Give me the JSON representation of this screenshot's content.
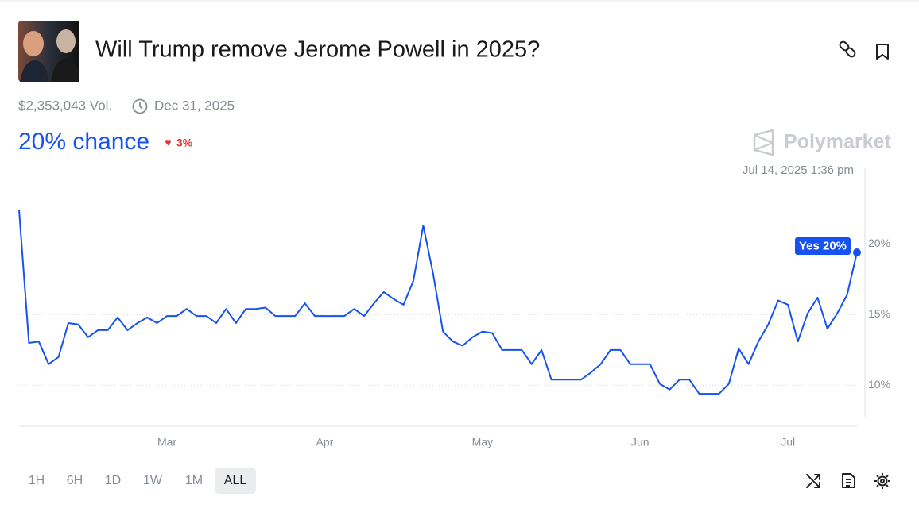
{
  "header": {
    "title": "Will Trump remove Jerome Powell in 2025?",
    "volume": "$2,353,043 Vol.",
    "end_date": "Dec 31, 2025"
  },
  "chance": {
    "label": "20% chance",
    "change": "3%"
  },
  "brand": "Polymarket",
  "chart_data": {
    "type": "line",
    "hover_date": "Jul 14, 2025 1:36 pm",
    "annotation": "Yes 20%",
    "color": "#1652f0",
    "categories": [
      null,
      null,
      null,
      null,
      null,
      null,
      null,
      null,
      null,
      null,
      null,
      null,
      null,
      null,
      null,
      "Mar",
      null,
      null,
      null,
      null,
      null,
      null,
      null,
      null,
      null,
      null,
      null,
      null,
      null,
      null,
      null,
      "Apr",
      null,
      null,
      null,
      null,
      null,
      null,
      null,
      null,
      null,
      null,
      null,
      null,
      null,
      null,
      null,
      "May",
      null,
      null,
      null,
      null,
      null,
      null,
      null,
      null,
      null,
      null,
      null,
      null,
      null,
      null,
      null,
      "Jun",
      null,
      null,
      null,
      null,
      null,
      null,
      null,
      null,
      null,
      null,
      null,
      null,
      null,
      null,
      "Jul",
      null,
      null,
      null,
      null,
      null,
      null,
      null
    ],
    "values": [
      22.4,
      13.0,
      13.1,
      11.5,
      12.0,
      14.4,
      14.3,
      13.4,
      13.9,
      13.9,
      14.8,
      13.9,
      14.4,
      14.8,
      14.4,
      14.9,
      14.9,
      15.4,
      14.9,
      14.9,
      14.4,
      15.4,
      14.4,
      15.4,
      15.4,
      15.5,
      14.9,
      14.9,
      14.9,
      15.8,
      14.9,
      14.9,
      14.9,
      14.9,
      15.4,
      14.9,
      15.8,
      16.6,
      16.1,
      15.7,
      17.4,
      21.3,
      17.9,
      13.8,
      13.1,
      12.8,
      13.4,
      13.8,
      13.7,
      12.5,
      12.5,
      12.5,
      11.5,
      12.5,
      10.4,
      10.4,
      10.4,
      10.4,
      10.9,
      11.5,
      12.5,
      12.5,
      11.5,
      11.5,
      11.5,
      10.1,
      9.7,
      10.4,
      10.4,
      9.4,
      9.4,
      9.4,
      10.1,
      12.6,
      11.5,
      13.1,
      14.3,
      16.0,
      15.7,
      13.1,
      15.1,
      16.2,
      14.0,
      15.1,
      16.4,
      19.4
    ],
    "ylim": [
      7.1,
      25.3
    ],
    "yticks": [
      {
        "value": 10,
        "label": "10%"
      },
      {
        "value": 15,
        "label": "15%"
      },
      {
        "value": 20,
        "label": "20%"
      }
    ],
    "grid": true
  },
  "time_ranges": [
    {
      "label": "1H"
    },
    {
      "label": "6H"
    },
    {
      "label": "1D"
    },
    {
      "label": "1W"
    },
    {
      "label": "1M"
    },
    {
      "label": "ALL",
      "active": true
    }
  ]
}
